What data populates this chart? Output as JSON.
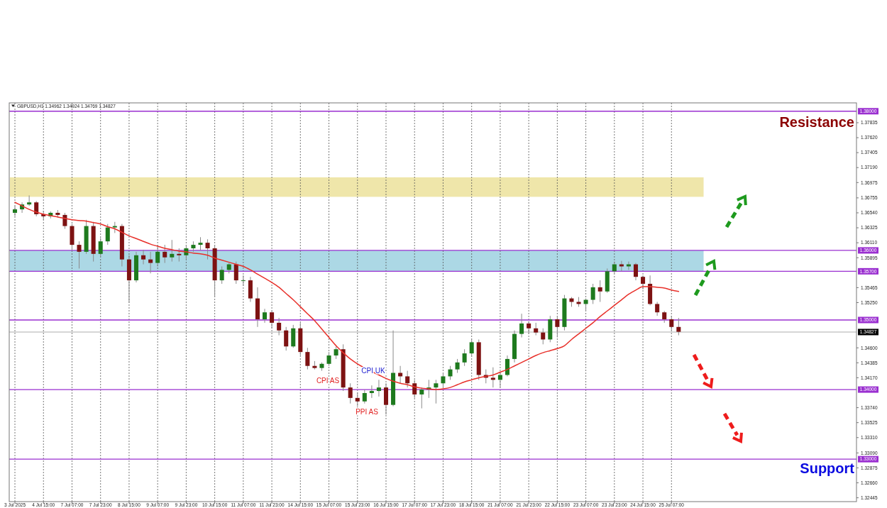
{
  "chart_data": {
    "type": "candlestick",
    "title": "GBPUSD,H1  1.34962 1.34924 1.34769 1.34827",
    "categories": [
      "3 Jul 2025",
      null,
      null,
      null,
      "4 Jul 15:00",
      null,
      null,
      null,
      "7 Jul 07:00",
      null,
      null,
      null,
      "7 Jul 23:00",
      null,
      null,
      null,
      "8 Jul 15:00",
      null,
      null,
      null,
      "9 Jul 07:00",
      null,
      null,
      null,
      "9 Jul 23:00",
      null,
      null,
      null,
      "10 Jul 15:00",
      null,
      null,
      null,
      "11 Jul 07:00",
      null,
      null,
      null,
      "11 Jul 23:00",
      null,
      null,
      null,
      "14 Jul 15:00",
      null,
      null,
      null,
      "15 Jul 07:00",
      null,
      null,
      null,
      "15 Jul 23:00",
      null,
      null,
      null,
      "16 Jul 15:00",
      null,
      null,
      null,
      "17 Jul 07:00",
      null,
      null,
      null,
      "17 Jul 23:00",
      null,
      null,
      null,
      "18 Jul 15:00",
      null,
      null,
      null,
      "21 Jul 07:00",
      null,
      null,
      null,
      "21 Jul 23:00",
      null,
      null,
      null,
      "22 Jul 15:00",
      null,
      null,
      null,
      "23 Jul 07:00",
      null,
      null,
      null,
      "23 Jul 23:00",
      null,
      null,
      null,
      "24 Jul 15:00",
      null,
      null,
      null,
      "25 Jul 07:00",
      null
    ],
    "ohlc": [
      [
        1.3654,
        1.3664,
        1.3649,
        1.3659
      ],
      [
        1.3659,
        1.3669,
        1.3654,
        1.3666
      ],
      [
        1.3666,
        1.3679,
        1.3664,
        1.3669
      ],
      [
        1.3669,
        1.3671,
        1.3649,
        1.3652
      ],
      [
        1.3652,
        1.3657,
        1.3644,
        1.3649
      ],
      [
        1.3649,
        1.3656,
        1.3646,
        1.3654
      ],
      [
        1.3654,
        1.3658,
        1.3647,
        1.3651
      ],
      [
        1.3651,
        1.3654,
        1.3631,
        1.3635
      ],
      [
        1.3635,
        1.3638,
        1.36,
        1.3608
      ],
      [
        1.3608,
        1.3613,
        1.3574,
        1.3598
      ],
      [
        1.3598,
        1.3644,
        1.3595,
        1.3635
      ],
      [
        1.3635,
        1.3641,
        1.3584,
        1.3595
      ],
      [
        1.3595,
        1.3618,
        1.3591,
        1.3613
      ],
      [
        1.3613,
        1.3638,
        1.3608,
        1.3633
      ],
      [
        1.3633,
        1.3641,
        1.3625,
        1.3635
      ],
      [
        1.3635,
        1.3638,
        1.3577,
        1.3587
      ],
      [
        1.3587,
        1.3593,
        1.3525,
        1.3557
      ],
      [
        1.3557,
        1.3598,
        1.3554,
        1.3593
      ],
      [
        1.3593,
        1.3601,
        1.358,
        1.3587
      ],
      [
        1.3587,
        1.3598,
        1.3567,
        1.3582
      ],
      [
        1.3582,
        1.3608,
        1.3577,
        1.3598
      ],
      [
        1.3598,
        1.3608,
        1.3582,
        1.359
      ],
      [
        1.359,
        1.3615,
        1.3584,
        1.3595
      ],
      [
        1.3595,
        1.3603,
        1.3584,
        1.3593
      ],
      [
        1.3593,
        1.3608,
        1.3587,
        1.3603
      ],
      [
        1.3603,
        1.3613,
        1.3598,
        1.3608
      ],
      [
        1.3608,
        1.3619,
        1.36,
        1.3611
      ],
      [
        1.3611,
        1.3616,
        1.3587,
        1.3603
      ],
      [
        1.3603,
        1.3608,
        1.3533,
        1.3557
      ],
      [
        1.3557,
        1.3577,
        1.3552,
        1.3572
      ],
      [
        1.3572,
        1.3582,
        1.3567,
        1.358
      ],
      [
        1.358,
        1.3584,
        1.3552,
        1.3557
      ],
      [
        1.3557,
        1.3564,
        1.3549,
        1.3557
      ],
      [
        1.3557,
        1.3562,
        1.3526,
        1.3531
      ],
      [
        1.3531,
        1.3547,
        1.349,
        1.3501
      ],
      [
        1.3501,
        1.3516,
        1.3496,
        1.3511
      ],
      [
        1.3511,
        1.3513,
        1.3488,
        1.3496
      ],
      [
        1.3496,
        1.3503,
        1.3478,
        1.3485
      ],
      [
        1.3485,
        1.349,
        1.3456,
        1.3462
      ],
      [
        1.3462,
        1.3493,
        1.346,
        1.3488
      ],
      [
        1.3488,
        1.3496,
        1.3449,
        1.3454
      ],
      [
        1.3454,
        1.346,
        1.3429,
        1.3434
      ],
      [
        1.3434,
        1.3441,
        1.3429,
        1.3431
      ],
      [
        1.3431,
        1.3439,
        1.3427,
        1.3437
      ],
      [
        1.3437,
        1.3454,
        1.3434,
        1.3449
      ],
      [
        1.3449,
        1.3462,
        1.3444,
        1.3458
      ],
      [
        1.3458,
        1.3465,
        1.3398,
        1.3403
      ],
      [
        1.3403,
        1.3409,
        1.338,
        1.3388
      ],
      [
        1.3388,
        1.3396,
        1.3376,
        1.3383
      ],
      [
        1.3383,
        1.34,
        1.338,
        1.3395
      ],
      [
        1.3395,
        1.3406,
        1.3388,
        1.3398
      ],
      [
        1.3398,
        1.3414,
        1.339,
        1.3403
      ],
      [
        1.3403,
        1.3409,
        1.3364,
        1.3378
      ],
      [
        1.3378,
        1.3485,
        1.3376,
        1.3424
      ],
      [
        1.3424,
        1.3434,
        1.3409,
        1.3419
      ],
      [
        1.3419,
        1.3427,
        1.3403,
        1.3409
      ],
      [
        1.3409,
        1.3414,
        1.3388,
        1.3393
      ],
      [
        1.3393,
        1.3403,
        1.3373,
        1.34
      ],
      [
        1.34,
        1.3414,
        1.3388,
        1.3403
      ],
      [
        1.3403,
        1.3414,
        1.338,
        1.3409
      ],
      [
        1.3409,
        1.3424,
        1.3403,
        1.3419
      ],
      [
        1.3419,
        1.3434,
        1.3414,
        1.3429
      ],
      [
        1.3429,
        1.3444,
        1.3424,
        1.3439
      ],
      [
        1.3439,
        1.3458,
        1.3434,
        1.3452
      ],
      [
        1.3452,
        1.3473,
        1.3447,
        1.3468
      ],
      [
        1.3468,
        1.3472,
        1.3414,
        1.3421
      ],
      [
        1.3421,
        1.3429,
        1.3409,
        1.3417
      ],
      [
        1.3417,
        1.3432,
        1.3403,
        1.3414
      ],
      [
        1.3414,
        1.3424,
        1.3403,
        1.3421
      ],
      [
        1.3421,
        1.3449,
        1.3419,
        1.3444
      ],
      [
        1.3444,
        1.3485,
        1.3439,
        1.348
      ],
      [
        1.348,
        1.3509,
        1.3475,
        1.3495
      ],
      [
        1.3495,
        1.3498,
        1.348,
        1.3488
      ],
      [
        1.3488,
        1.3496,
        1.3478,
        1.3482
      ],
      [
        1.3482,
        1.3488,
        1.3465,
        1.3472
      ],
      [
        1.3472,
        1.3506,
        1.3468,
        1.3501
      ],
      [
        1.3501,
        1.3506,
        1.3475,
        1.349
      ],
      [
        1.349,
        1.3536,
        1.3485,
        1.3531
      ],
      [
        1.3531,
        1.3533,
        1.3519,
        1.3526
      ],
      [
        1.3526,
        1.3533,
        1.3519,
        1.3523
      ],
      [
        1.3523,
        1.3531,
        1.3513,
        1.3529
      ],
      [
        1.3529,
        1.3552,
        1.3523,
        1.3547
      ],
      [
        1.3547,
        1.3557,
        1.3526,
        1.3541
      ],
      [
        1.3541,
        1.3574,
        1.3539,
        1.357
      ],
      [
        1.357,
        1.3584,
        1.3567,
        1.358
      ],
      [
        1.358,
        1.3585,
        1.357,
        1.3577
      ],
      [
        1.3577,
        1.3584,
        1.3572,
        1.358
      ],
      [
        1.358,
        1.3582,
        1.3557,
        1.3562
      ],
      [
        1.3562,
        1.3564,
        1.3544,
        1.3552
      ],
      [
        1.3552,
        1.3564,
        1.3521,
        1.3523
      ],
      [
        1.3523,
        1.3526,
        1.3506,
        1.3511
      ],
      [
        1.3511,
        1.3513,
        1.3496,
        1.3501
      ],
      [
        1.3501,
        1.3506,
        1.3485,
        1.349
      ],
      [
        1.349,
        1.3503,
        1.3478,
        1.3483
      ]
    ],
    "series": [
      {
        "type": "line",
        "color": "#e8302a",
        "values": [
          1.3669,
          1.3664,
          1.3659,
          1.3655,
          1.3652,
          1.365,
          1.3648,
          1.3646,
          1.3644,
          1.3643,
          1.3642,
          1.364,
          1.3638,
          1.3634,
          1.3631,
          1.3626,
          1.3621,
          1.3617,
          1.3613,
          1.3609,
          1.3606,
          1.3603,
          1.3601,
          1.3599,
          1.3598,
          1.3596,
          1.3595,
          1.3593,
          1.3589,
          1.3586,
          1.3583,
          1.358,
          1.3577,
          1.3572,
          1.3566,
          1.356,
          1.3554,
          1.3547,
          1.3538,
          1.3529,
          1.3519,
          1.3509,
          1.3499,
          1.3487,
          1.3475,
          1.3463,
          1.3453,
          1.3444,
          1.3437,
          1.3431,
          1.3426,
          1.3421,
          1.3416,
          1.3412,
          1.3409,
          1.3407,
          1.3404,
          1.3402,
          1.3401,
          1.34,
          1.3401,
          1.3403,
          1.3407,
          1.3411,
          1.3414,
          1.3417,
          1.3419,
          1.3421,
          1.3425,
          1.3429,
          1.3434,
          1.3439,
          1.3444,
          1.3449,
          1.3453,
          1.3456,
          1.3459,
          1.3463,
          1.3472,
          1.348,
          1.3488,
          1.3496,
          1.3505,
          1.3513,
          1.3521,
          1.3529,
          1.3537,
          1.3543,
          1.3548,
          1.3548,
          1.3547,
          1.3546,
          1.3543,
          1.3541
        ]
      }
    ],
    "ylim": [
      1.3239,
      1.3812
    ],
    "yticks": [
      {
        "value": 1.37835,
        "label": "1.37835"
      },
      {
        "value": 1.3762,
        "label": "1.37620"
      },
      {
        "value": 1.37405,
        "label": "1.37405"
      },
      {
        "value": 1.3719,
        "label": "1.37190"
      },
      {
        "value": 1.36975,
        "label": "1.36975"
      },
      {
        "value": 1.36755,
        "label": "1.36755"
      },
      {
        "value": 1.3654,
        "label": "1.36540"
      },
      {
        "value": 1.36325,
        "label": "1.36325"
      },
      {
        "value": 1.3611,
        "label": "1.36110"
      },
      {
        "value": 1.35895,
        "label": "1.35895"
      },
      {
        "value": 1.35465,
        "label": "1.35465"
      },
      {
        "value": 1.3525,
        "label": "1.35250"
      },
      {
        "value": 1.346,
        "label": "1.34600"
      },
      {
        "value": 1.34385,
        "label": "1.34385"
      },
      {
        "value": 1.3417,
        "label": "1.34170"
      },
      {
        "value": 1.3374,
        "label": "1.33740"
      },
      {
        "value": 1.33525,
        "label": "1.33525"
      },
      {
        "value": 1.3331,
        "label": "1.33310"
      },
      {
        "value": 1.3309,
        "label": "1.33090"
      },
      {
        "value": 1.32875,
        "label": "1.32875"
      },
      {
        "value": 1.3266,
        "label": "1.32660"
      },
      {
        "value": 1.32445,
        "label": "1.32445"
      }
    ],
    "grid": "x",
    "bands": [
      {
        "axis": "y",
        "from": 1.3677,
        "to": 1.3705,
        "color": "#efe6aa"
      },
      {
        "axis": "y",
        "from": 1.357,
        "to": 1.36,
        "color": "#acd8e5"
      }
    ],
    "ref_lines": [
      {
        "axis": "y",
        "value": 1.38,
        "label": "1.38000",
        "color": "#9a2fd0"
      },
      {
        "axis": "y",
        "value": 1.36,
        "label": "1.36000",
        "color": "#9a2fd0"
      },
      {
        "axis": "y",
        "value": 1.357,
        "label": "1.35700",
        "color": "#9a2fd0"
      },
      {
        "axis": "y",
        "value": 1.35,
        "label": "1.35000",
        "color": "#9a2fd0"
      },
      {
        "axis": "y",
        "value": 1.34827,
        "label": "1.34827",
        "color": "#c8c8c8"
      },
      {
        "axis": "y",
        "value": 1.34,
        "label": "1.34000",
        "color": "#9a2fd0"
      },
      {
        "axis": "y",
        "value": 1.33,
        "label": "1.33000",
        "color": "#9a2fd0"
      }
    ],
    "annotations": [
      "Resistance",
      "Support",
      "CPI AS",
      "CPI UK",
      "PPI AS"
    ]
  }
}
